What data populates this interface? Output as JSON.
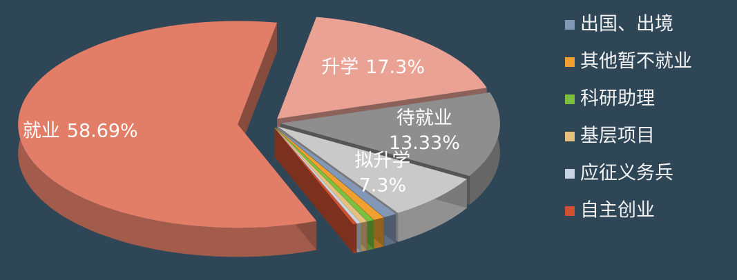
{
  "chart_data": {
    "type": "pie",
    "categories": [
      "就业",
      "升学",
      "待就业",
      "拟升学",
      "出国、出境",
      "其他暂不就业",
      "科研助理",
      "基层项目",
      "应征义务兵",
      "自主创业"
    ],
    "values": [
      58.69,
      17.3,
      13.33,
      7.3,
      1.0,
      0.8,
      0.5,
      0.5,
      0.3,
      0.28
    ],
    "value_labels": [
      "58.69%",
      "17.3%",
      "13.33%",
      "7.3%",
      null,
      null,
      null,
      null,
      null,
      null
    ],
    "colors": [
      "#e27e68",
      "#e9a294",
      "#8e8e8e",
      "#c9c9c9",
      "#8298b6",
      "#f0a030",
      "#7cc040",
      "#e6c07e",
      "#c8d4e2",
      "#cf5132"
    ],
    "legend": true
  }
}
